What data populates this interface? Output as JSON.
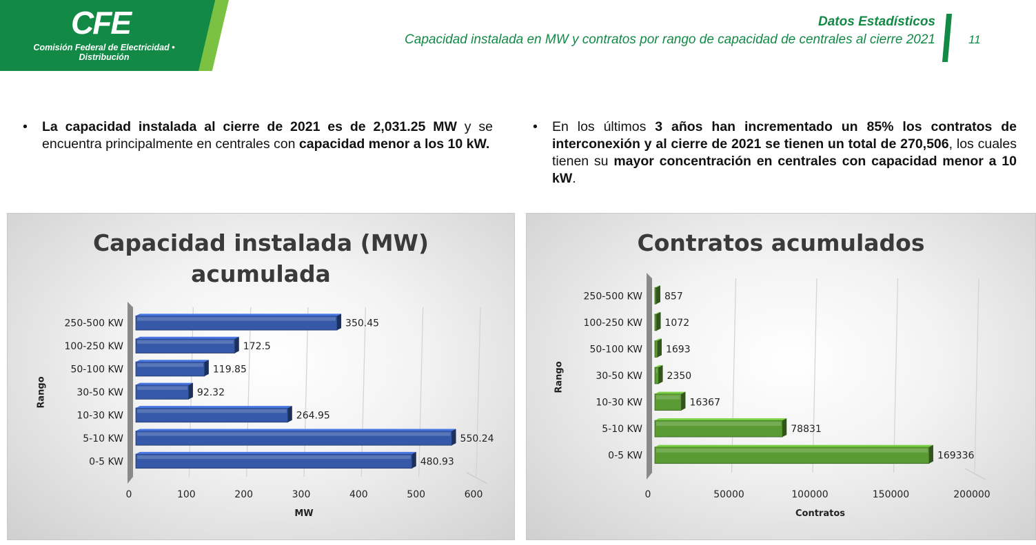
{
  "header": {
    "logo": "CFE",
    "logo_subtitle_line1": "Comisión Federal de Electricidad •",
    "logo_subtitle_line2": "Distribución",
    "title": "Datos Estadísticos",
    "subtitle": "Capacidad instalada en MW y contratos por rango de capacidad de centrales al cierre 2021",
    "page_number": "11"
  },
  "bullets": {
    "marker": "•",
    "left": {
      "p1": "La capacidad instalada al cierre de 2021 es de 2,031.25 MW",
      "p2": " y se encuentra principalmente en centrales con ",
      "p3": "capacidad menor a los 10 kW."
    },
    "right": {
      "p1": "En los últimos ",
      "p2": "3 años han incrementado un 85% los contratos de interconexión y al cierre de 2021 se tienen un total de 270,506",
      "p3": ", los cuales tienen su ",
      "p4": "mayor concentración en centrales con capacidad menor a 10 kW",
      "p5": "."
    }
  },
  "colors": {
    "brand_green": "#128a46",
    "accent_green": "#7cc242",
    "bar_blue": "#3558a8",
    "bar_green": "#5a9a32"
  },
  "chart_data": [
    {
      "type": "bar",
      "orientation": "horizontal",
      "title_line1": "Capacidad instalada (MW)",
      "title_line2": "acumulada",
      "xlabel": "MW",
      "ylabel": "Rango",
      "categories": [
        "250-500 KW",
        "100-250 KW",
        "50-100 KW",
        "30-50 KW",
        "10-30 KW",
        "5-10 KW",
        "0-5 KW"
      ],
      "values": [
        350.45,
        172.5,
        119.85,
        92.32,
        264.95,
        550.24,
        480.93
      ],
      "value_labels": [
        "350.45",
        "172.5",
        "119.85",
        "92.32",
        "264.95",
        "550.24",
        "480.93"
      ],
      "xlim": [
        0,
        600
      ],
      "xticks": [
        "0",
        "100",
        "200",
        "300",
        "400",
        "500",
        "600"
      ],
      "grid": true,
      "color": "#3558a8"
    },
    {
      "type": "bar",
      "orientation": "horizontal",
      "title_line1": "Contratos acumulados",
      "xlabel": "Contratos",
      "ylabel": "Rango",
      "categories": [
        "250-500 KW",
        "100-250 KW",
        "50-100 KW",
        "30-50 KW",
        "10-30 KW",
        "5-10 KW",
        "0-5 KW"
      ],
      "values": [
        857,
        1072,
        1693,
        2350,
        16367,
        78831,
        169336
      ],
      "value_labels": [
        "857",
        "1072",
        "1693",
        "2350",
        "16367",
        "78831",
        "169336"
      ],
      "xlim": [
        0,
        200000
      ],
      "xticks": [
        "0",
        "50000",
        "100000",
        "150000",
        "200000"
      ],
      "grid": true,
      "color": "#5a9a32"
    }
  ]
}
